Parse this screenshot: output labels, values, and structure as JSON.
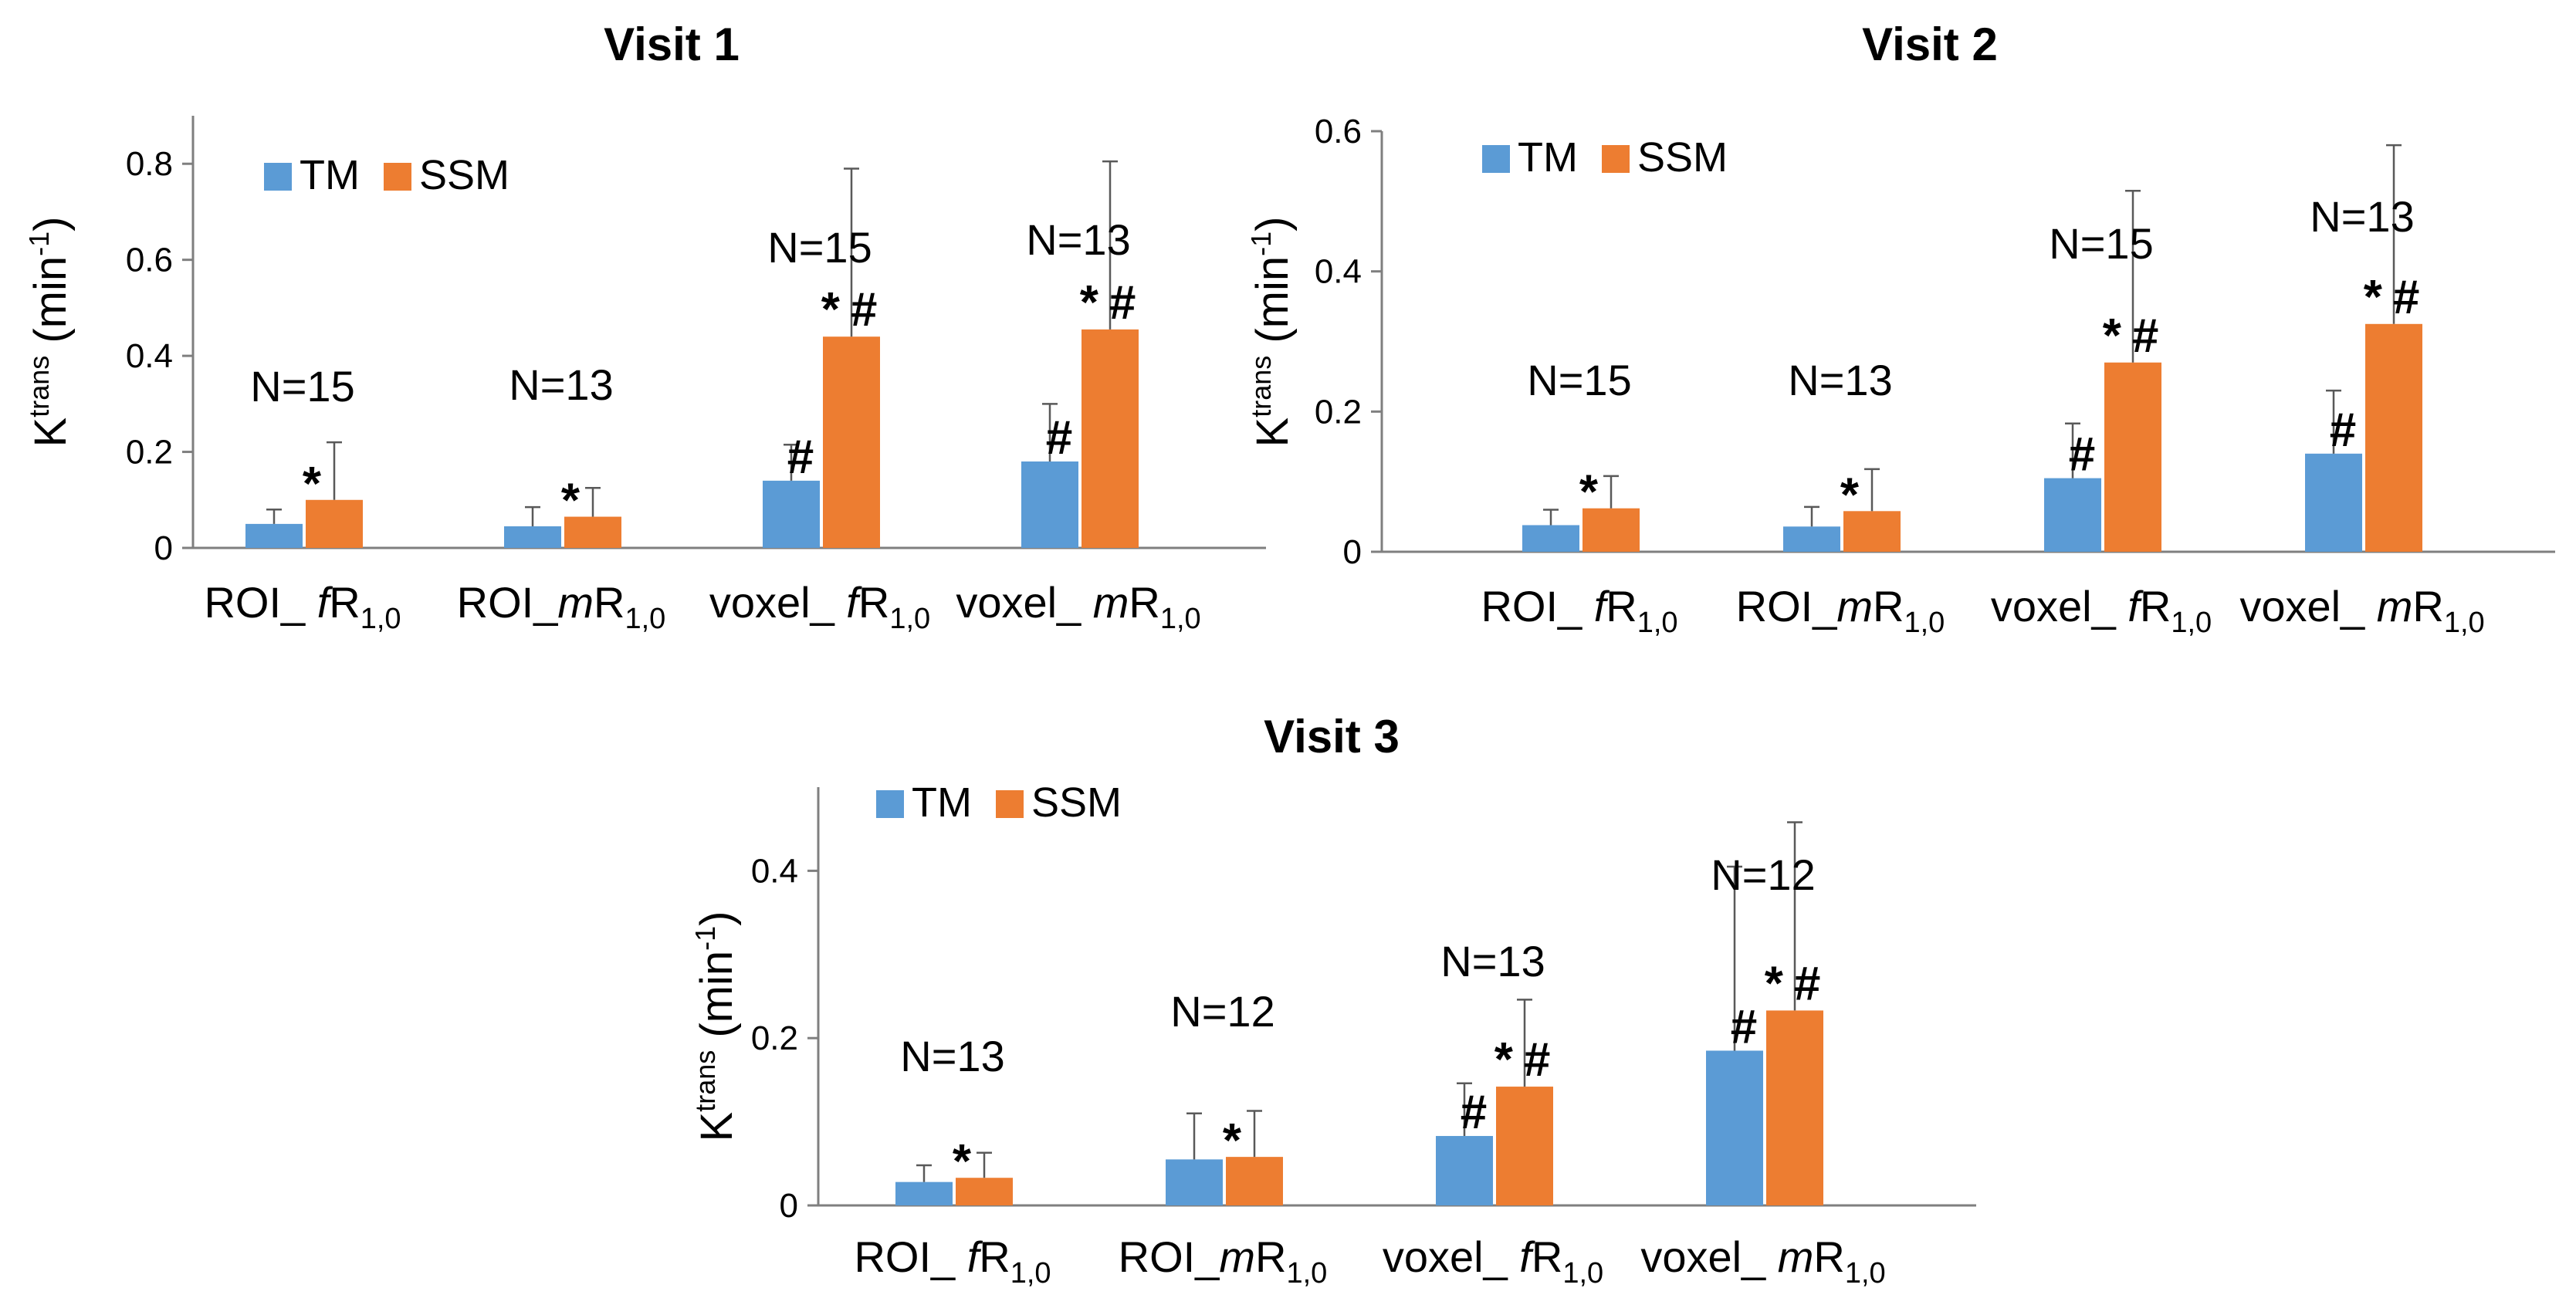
{
  "colors": {
    "tm": "#5b9bd5",
    "ssm": "#ed7d31",
    "axis": "#7f7f7f",
    "error": "#595959"
  },
  "ylabel": {
    "main": "K",
    "sup": "trans",
    "unit_pre": " (min",
    "unit_sup": "-1",
    "unit_post": ")"
  },
  "chart_data": [
    {
      "type": "bar",
      "title": "Visit 1",
      "ylim": [
        0,
        0.9
      ],
      "yticks": [
        "0",
        "0.2",
        "0.4",
        "0.6",
        "0.8"
      ],
      "ytick_values": [
        0,
        0.2,
        0.4,
        0.6,
        0.8
      ],
      "legend_position": "top-left",
      "categories": [
        {
          "pre": "ROI_ ",
          "italic": "f",
          "post": "R",
          "sub": "1,0"
        },
        {
          "pre": "ROI_",
          "italic": "m",
          "post": "R",
          "sub": "1,0"
        },
        {
          "pre": "voxel_ ",
          "italic": "f",
          "post": "R",
          "sub": "1,0"
        },
        {
          "pre": "voxel_ ",
          "italic": "m",
          "post": "R",
          "sub": "1,0"
        }
      ],
      "n_labels": [
        "N=15",
        "N=13",
        "N=15",
        "N=13"
      ],
      "series": [
        {
          "name": "TM",
          "values": [
            0.05,
            0.045,
            0.14,
            0.18
          ],
          "errors": [
            0.03,
            0.04,
            0.075,
            0.12
          ],
          "marks": [
            "",
            "",
            "#",
            "#"
          ]
        },
        {
          "name": "SSM",
          "values": [
            0.1,
            0.065,
            0.44,
            0.455
          ],
          "errors": [
            0.12,
            0.06,
            0.35,
            0.35
          ],
          "marks": [
            "*",
            "*",
            "*#",
            "*#"
          ]
        }
      ]
    },
    {
      "type": "bar",
      "title": "Visit 2",
      "ylim": [
        0,
        0.6
      ],
      "yticks": [
        "0",
        "0.2",
        "0.4",
        "0.6"
      ],
      "ytick_values": [
        0,
        0.2,
        0.4,
        0.6
      ],
      "legend_position": "top-left",
      "categories": [
        {
          "pre": "ROI_ ",
          "italic": "f",
          "post": "R",
          "sub": "1,0"
        },
        {
          "pre": "ROI_",
          "italic": "m",
          "post": "R",
          "sub": "1,0"
        },
        {
          "pre": "voxel_ ",
          "italic": "f",
          "post": "R",
          "sub": "1,0"
        },
        {
          "pre": "voxel_ ",
          "italic": "m",
          "post": "R",
          "sub": "1,0"
        }
      ],
      "n_labels": [
        "N=15",
        "N=13",
        "N=15",
        "N=13"
      ],
      "series": [
        {
          "name": "TM",
          "values": [
            0.038,
            0.036,
            0.105,
            0.14
          ],
          "errors": [
            0.022,
            0.028,
            0.078,
            0.09
          ],
          "marks": [
            "",
            "",
            "#",
            "#"
          ]
        },
        {
          "name": "SSM",
          "values": [
            0.062,
            0.058,
            0.27,
            0.325
          ],
          "errors": [
            0.046,
            0.06,
            0.245,
            0.255
          ],
          "marks": [
            "*",
            "*",
            "*#",
            "*#"
          ]
        }
      ]
    },
    {
      "type": "bar",
      "title": "Visit 3",
      "ylim": [
        0,
        0.5
      ],
      "yticks": [
        "0",
        "0.2",
        "0.4"
      ],
      "ytick_values": [
        0,
        0.2,
        0.4
      ],
      "legend_position": "top-left",
      "categories": [
        {
          "pre": "ROI_ ",
          "italic": "f",
          "post": "R",
          "sub": "1,0"
        },
        {
          "pre": "ROI_",
          "italic": "m",
          "post": "R",
          "sub": "1,0"
        },
        {
          "pre": "voxel_ ",
          "italic": "f",
          "post": "R",
          "sub": "1,0"
        },
        {
          "pre": "voxel_ ",
          "italic": "m",
          "post": "R",
          "sub": "1,0"
        }
      ],
      "n_labels": [
        "N=13",
        "N=12",
        "N=13",
        "N=12"
      ],
      "series": [
        {
          "name": "TM",
          "values": [
            0.028,
            0.055,
            0.083,
            0.185
          ],
          "errors": [
            0.02,
            0.055,
            0.063,
            0.22
          ],
          "marks": [
            "",
            "",
            "#",
            "#"
          ]
        },
        {
          "name": "SSM",
          "values": [
            0.033,
            0.058,
            0.142,
            0.233
          ],
          "errors": [
            0.03,
            0.055,
            0.104,
            0.225
          ],
          "marks": [
            "*",
            "*",
            "*#",
            "*#"
          ]
        }
      ]
    }
  ]
}
